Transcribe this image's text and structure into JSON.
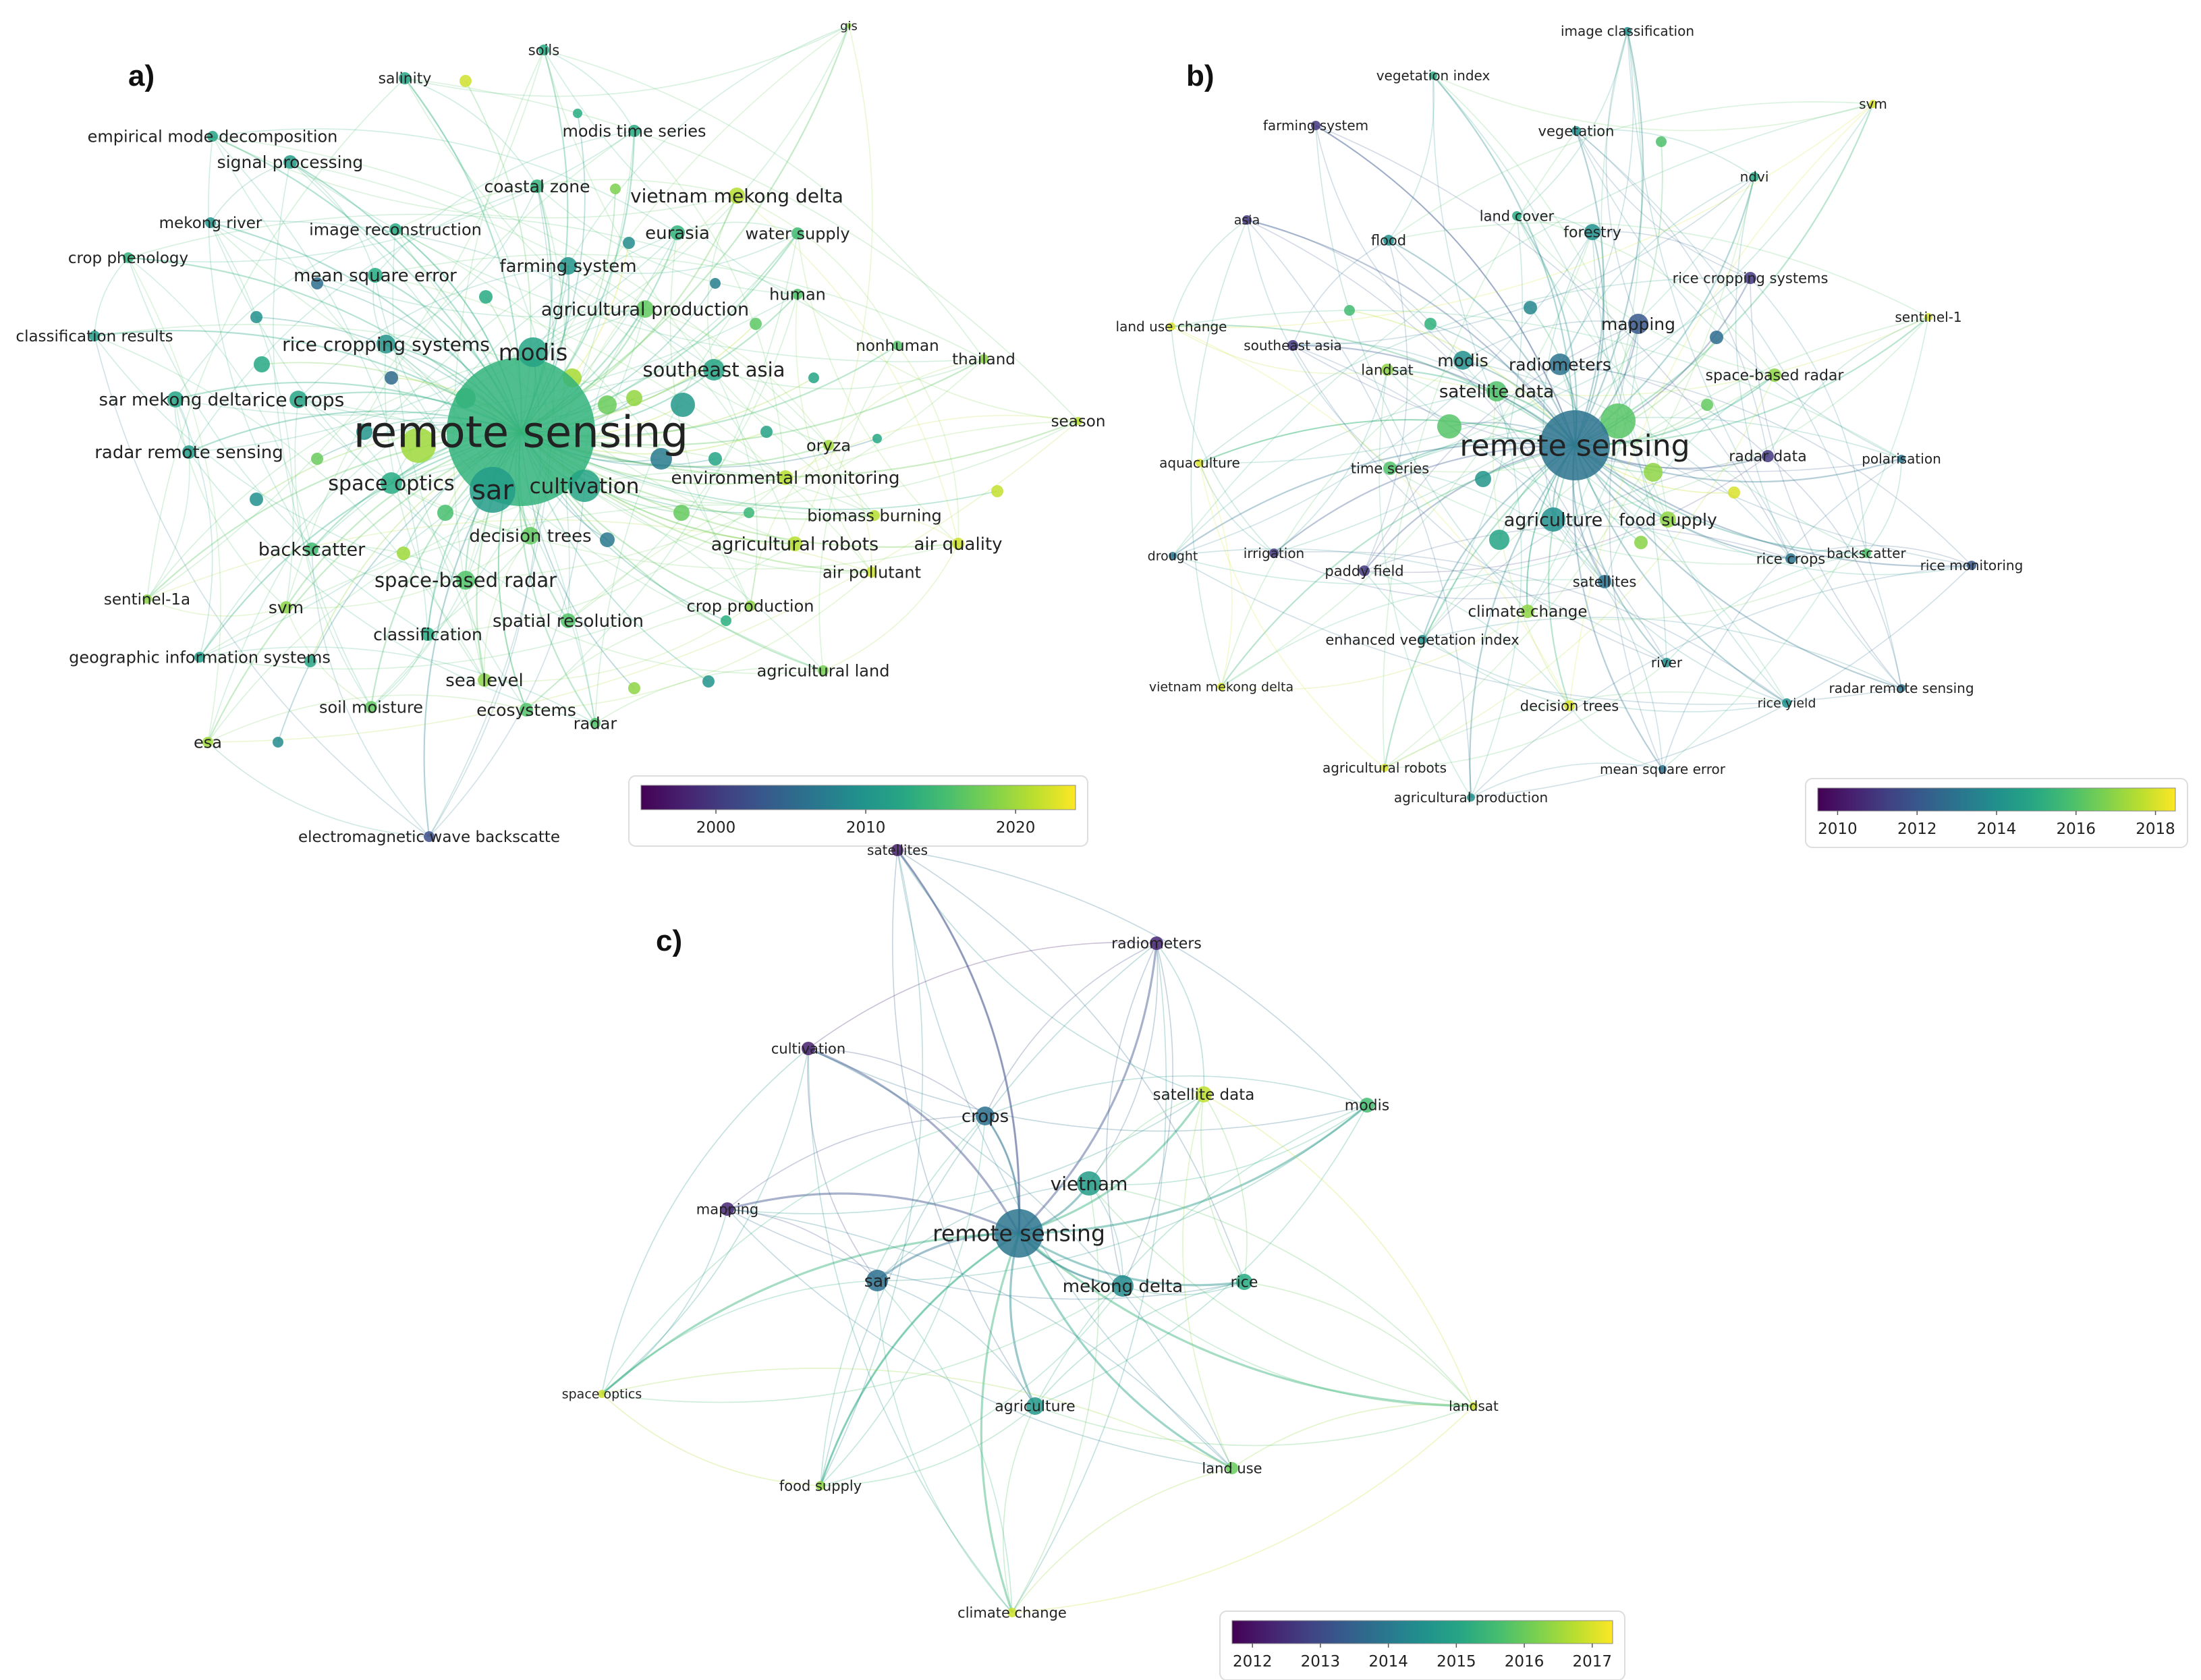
{
  "panels": [
    {
      "id": "a",
      "label": "a)",
      "legend": {
        "ticks": [
          "2000",
          "2010",
          "2020"
        ],
        "tick_values": [
          2000,
          2010,
          2020
        ],
        "min": 1995,
        "max": 2024
      },
      "nodes": [
        {
          "label": "gis",
          "year": 2019
        },
        {
          "label": "soils",
          "year": 2013
        },
        {
          "label": "salinity",
          "year": 2012
        },
        {
          "label": "empirical mode decomposition",
          "year": 2012
        },
        {
          "label": "modis time series",
          "year": 2013
        },
        {
          "label": "signal processing",
          "year": 2011
        },
        {
          "label": "coastal zone",
          "year": 2014
        },
        {
          "label": "vietnam mekong delta",
          "year": 2021
        },
        {
          "label": "mekong river",
          "year": 2010
        },
        {
          "label": "image reconstruction",
          "year": 2013
        },
        {
          "label": "eurasia",
          "year": 2014
        },
        {
          "label": "water supply",
          "year": 2015
        },
        {
          "label": "crop phenology",
          "year": 2014
        },
        {
          "label": "farming system",
          "year": 2010
        },
        {
          "label": "mean square error",
          "year": 2013
        },
        {
          "label": "human",
          "year": 2016
        },
        {
          "label": "agricultural production",
          "year": 2017
        },
        {
          "label": "classification results",
          "year": 2011
        },
        {
          "label": "rice cropping systems",
          "year": 2010
        },
        {
          "label": "modis",
          "year": 2012
        },
        {
          "label": "nonhuman",
          "year": 2016
        },
        {
          "label": "thailand",
          "year": 2019
        },
        {
          "label": "southeast asia",
          "year": 2012
        },
        {
          "label": "sar mekong delta",
          "year": 2012
        },
        {
          "label": "rice crops",
          "year": 2012
        },
        {
          "label": "season",
          "year": 2021
        },
        {
          "label": "remote sensing",
          "year": 2014
        },
        {
          "label": "oryza",
          "year": 2020
        },
        {
          "label": "radar remote sensing",
          "year": 2011
        },
        {
          "label": "environmental monitoring",
          "year": 2021
        },
        {
          "label": "space optics",
          "year": 2013
        },
        {
          "label": "sar",
          "year": 2011
        },
        {
          "label": "cultivation",
          "year": 2012
        },
        {
          "label": "biomass burning",
          "year": 2021
        },
        {
          "label": "backscatter",
          "year": 2015
        },
        {
          "label": "decision trees",
          "year": 2017
        },
        {
          "label": "agricultural robots",
          "year": 2021
        },
        {
          "label": "air quality",
          "year": 2022
        },
        {
          "label": "air pollutant",
          "year": 2022
        },
        {
          "label": "space-based radar",
          "year": 2016
        },
        {
          "label": "sentinel-1a",
          "year": 2019
        },
        {
          "label": "svm",
          "year": 2019
        },
        {
          "label": "spatial resolution",
          "year": 2016
        },
        {
          "label": "crop production",
          "year": 2019
        },
        {
          "label": "classification",
          "year": 2013
        },
        {
          "label": "geographic information systems",
          "year": 2011
        },
        {
          "label": "sea level",
          "year": 2019
        },
        {
          "label": "agricultural land",
          "year": 2018
        },
        {
          "label": "soil moisture",
          "year": 2017
        },
        {
          "label": "ecosystems",
          "year": 2016
        },
        {
          "label": "radar",
          "year": 2016
        },
        {
          "label": "esa",
          "year": 2020
        },
        {
          "label": "electromagnetic wave backscatte",
          "year": 2002
        }
      ]
    },
    {
      "id": "b",
      "label": "b)",
      "legend": {
        "ticks": [
          "2010",
          "2012",
          "2014",
          "2016",
          "2018"
        ],
        "tick_values": [
          2010,
          2012,
          2014,
          2016,
          2018
        ],
        "min": 2009.5,
        "max": 2018.5
      },
      "nodes": [
        {
          "label": "image classification",
          "year": 2014
        },
        {
          "label": "vegetation index",
          "year": 2015
        },
        {
          "label": "svm",
          "year": 2018
        },
        {
          "label": "farming system",
          "year": 2011
        },
        {
          "label": "vegetation",
          "year": 2014
        },
        {
          "label": "ndvi",
          "year": 2015
        },
        {
          "label": "asia",
          "year": 2011
        },
        {
          "label": "land cover",
          "year": 2015
        },
        {
          "label": "forestry",
          "year": 2014
        },
        {
          "label": "flood",
          "year": 2014
        },
        {
          "label": "rice cropping systems",
          "year": 2011
        },
        {
          "label": "land use change",
          "year": 2018
        },
        {
          "label": "sentinel-1",
          "year": 2018
        },
        {
          "label": "mapping",
          "year": 2012
        },
        {
          "label": "southeast asia",
          "year": 2011
        },
        {
          "label": "landsat",
          "year": 2017
        },
        {
          "label": "modis",
          "year": 2014
        },
        {
          "label": "radiometers",
          "year": 2013
        },
        {
          "label": "space-based radar",
          "year": 2017
        },
        {
          "label": "satellite data",
          "year": 2016
        },
        {
          "label": "remote sensing",
          "year": 2013
        },
        {
          "label": "aquaculture",
          "year": 2018
        },
        {
          "label": "radar data",
          "year": 2011
        },
        {
          "label": "polarisation",
          "year": 2013
        },
        {
          "label": "time series",
          "year": 2016
        },
        {
          "label": "agriculture",
          "year": 2014
        },
        {
          "label": "food supply",
          "year": 2017
        },
        {
          "label": "drought",
          "year": 2013
        },
        {
          "label": "irrigation",
          "year": 2011
        },
        {
          "label": "paddy field",
          "year": 2011
        },
        {
          "label": "rice crops",
          "year": 2013
        },
        {
          "label": "backscatter",
          "year": 2016
        },
        {
          "label": "rice monitoring",
          "year": 2012
        },
        {
          "label": "satellites",
          "year": 2013
        },
        {
          "label": "climate change",
          "year": 2017
        },
        {
          "label": "enhanced vegetation index",
          "year": 2014
        },
        {
          "label": "river",
          "year": 2014
        },
        {
          "label": "vietnam mekong delta",
          "year": 2018
        },
        {
          "label": "rice yield",
          "year": 2014
        },
        {
          "label": "radar remote sensing",
          "year": 2013
        },
        {
          "label": "decision trees",
          "year": 2018
        },
        {
          "label": "agricultural robots",
          "year": 2018
        },
        {
          "label": "mean square error",
          "year": 2013
        },
        {
          "label": "agricultural production",
          "year": 2014
        }
      ]
    },
    {
      "id": "c",
      "label": "c)",
      "legend": {
        "ticks": [
          "2012",
          "2013",
          "2014",
          "2015",
          "2016",
          "2017"
        ],
        "tick_values": [
          2012,
          2013,
          2014,
          2015,
          2016,
          2017
        ],
        "min": 2011.7,
        "max": 2017.3
      },
      "nodes": [
        {
          "label": "satellites",
          "year": 2012.2
        },
        {
          "label": "radiometers",
          "year": 2012.3
        },
        {
          "label": "cultivation",
          "year": 2012.2
        },
        {
          "label": "satellite data",
          "year": 2016.8
        },
        {
          "label": "modis",
          "year": 2015.6
        },
        {
          "label": "crops",
          "year": 2013.8
        },
        {
          "label": "vietnam",
          "year": 2014.8
        },
        {
          "label": "mapping",
          "year": 2012.3
        },
        {
          "label": "remote sensing",
          "year": 2013.9
        },
        {
          "label": "sar",
          "year": 2013.8
        },
        {
          "label": "mekong delta",
          "year": 2014.4
        },
        {
          "label": "rice",
          "year": 2015.2
        },
        {
          "label": "space optics",
          "year": 2016.9
        },
        {
          "label": "agriculture",
          "year": 2014.7
        },
        {
          "label": "landsat",
          "year": 2016.9
        },
        {
          "label": "food supply",
          "year": 2016.4
        },
        {
          "label": "land use",
          "year": 2016.0
        },
        {
          "label": "climate change",
          "year": 2016.9
        }
      ]
    }
  ]
}
